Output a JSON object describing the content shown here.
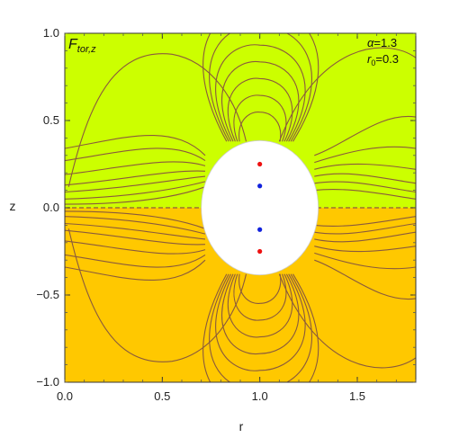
{
  "chart_data": {
    "type": "contour",
    "xlabel": "r",
    "ylabel": "z",
    "xlim": [
      0,
      1.8
    ],
    "ylim": [
      -1.0,
      1.0
    ],
    "x_ticks": [
      {
        "value": 0.0,
        "label": "0.0"
      },
      {
        "value": 0.5,
        "label": "0.5"
      },
      {
        "value": 1.0,
        "label": "1.0"
      },
      {
        "value": 1.5,
        "label": "1.5"
      }
    ],
    "y_ticks": [
      {
        "value": 1.0,
        "label": "1.0"
      },
      {
        "value": 0.5,
        "label": "0.5"
      },
      {
        "value": 0.0,
        "label": "0.0"
      },
      {
        "value": -0.5,
        "label": "−0.5"
      },
      {
        "value": -1.0,
        "label": "−1.0"
      }
    ],
    "panel_label": {
      "main": "F",
      "sub": "tor,z"
    },
    "params": [
      {
        "name": "α",
        "sub": "",
        "value": "1.3"
      },
      {
        "name": "r",
        "sub": "0",
        "value": "0.3"
      }
    ],
    "regions": [
      {
        "z_range": [
          0,
          1.0
        ],
        "color": "#ccff00"
      },
      {
        "z_range": [
          -1.0,
          0
        ],
        "color": "#ffc800"
      }
    ],
    "excluded_ellipse": {
      "center": [
        1.0,
        0.0
      ],
      "semi_axis_r": 0.3,
      "semi_axis_z": 0.385
    },
    "contour_color": "#8a5a3c",
    "zero_line_z": 0.0,
    "points": [
      {
        "r": 1.0,
        "z": 0.25,
        "color": "#ee1111"
      },
      {
        "r": 1.0,
        "z": 0.125,
        "color": "#1122dd"
      },
      {
        "r": 1.0,
        "z": -0.125,
        "color": "#1122dd"
      },
      {
        "r": 1.0,
        "z": -0.25,
        "color": "#ee1111"
      }
    ],
    "grid": false
  }
}
